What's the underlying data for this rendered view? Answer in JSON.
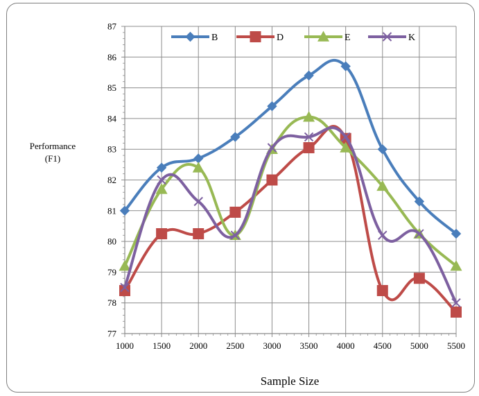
{
  "chart_data": {
    "type": "line",
    "title": "",
    "xlabel": "Sample Size",
    "ylabel_lines": [
      "Performance",
      "(F1)"
    ],
    "x": [
      1000,
      1500,
      2000,
      2500,
      3000,
      3500,
      4000,
      4500,
      5000,
      5500
    ],
    "ylim": [
      77,
      87
    ],
    "yticks": [
      77,
      78,
      79,
      80,
      81,
      82,
      83,
      84,
      85,
      86,
      87
    ],
    "grid": true,
    "smooth": true,
    "legend_position": "top",
    "series": [
      {
        "name": "B",
        "color": "#4a7ebb",
        "marker": "diamond",
        "values": [
          81.0,
          82.4,
          82.7,
          83.4,
          84.4,
          85.4,
          85.7,
          83.0,
          81.3,
          80.25
        ]
      },
      {
        "name": "D",
        "color": "#be4b48",
        "marker": "square",
        "values": [
          78.4,
          80.25,
          80.25,
          80.95,
          82.0,
          83.05,
          83.35,
          78.4,
          78.8,
          77.7
        ]
      },
      {
        "name": "E",
        "color": "#98b954",
        "marker": "triangle",
        "values": [
          79.2,
          81.7,
          82.4,
          80.2,
          83.0,
          84.05,
          83.05,
          81.8,
          80.25,
          79.2
        ]
      },
      {
        "name": "K",
        "color": "#7d60a0",
        "marker": "x",
        "values": [
          78.5,
          82.0,
          81.3,
          80.2,
          83.05,
          83.4,
          83.4,
          80.2,
          80.25,
          78.0
        ]
      }
    ]
  }
}
